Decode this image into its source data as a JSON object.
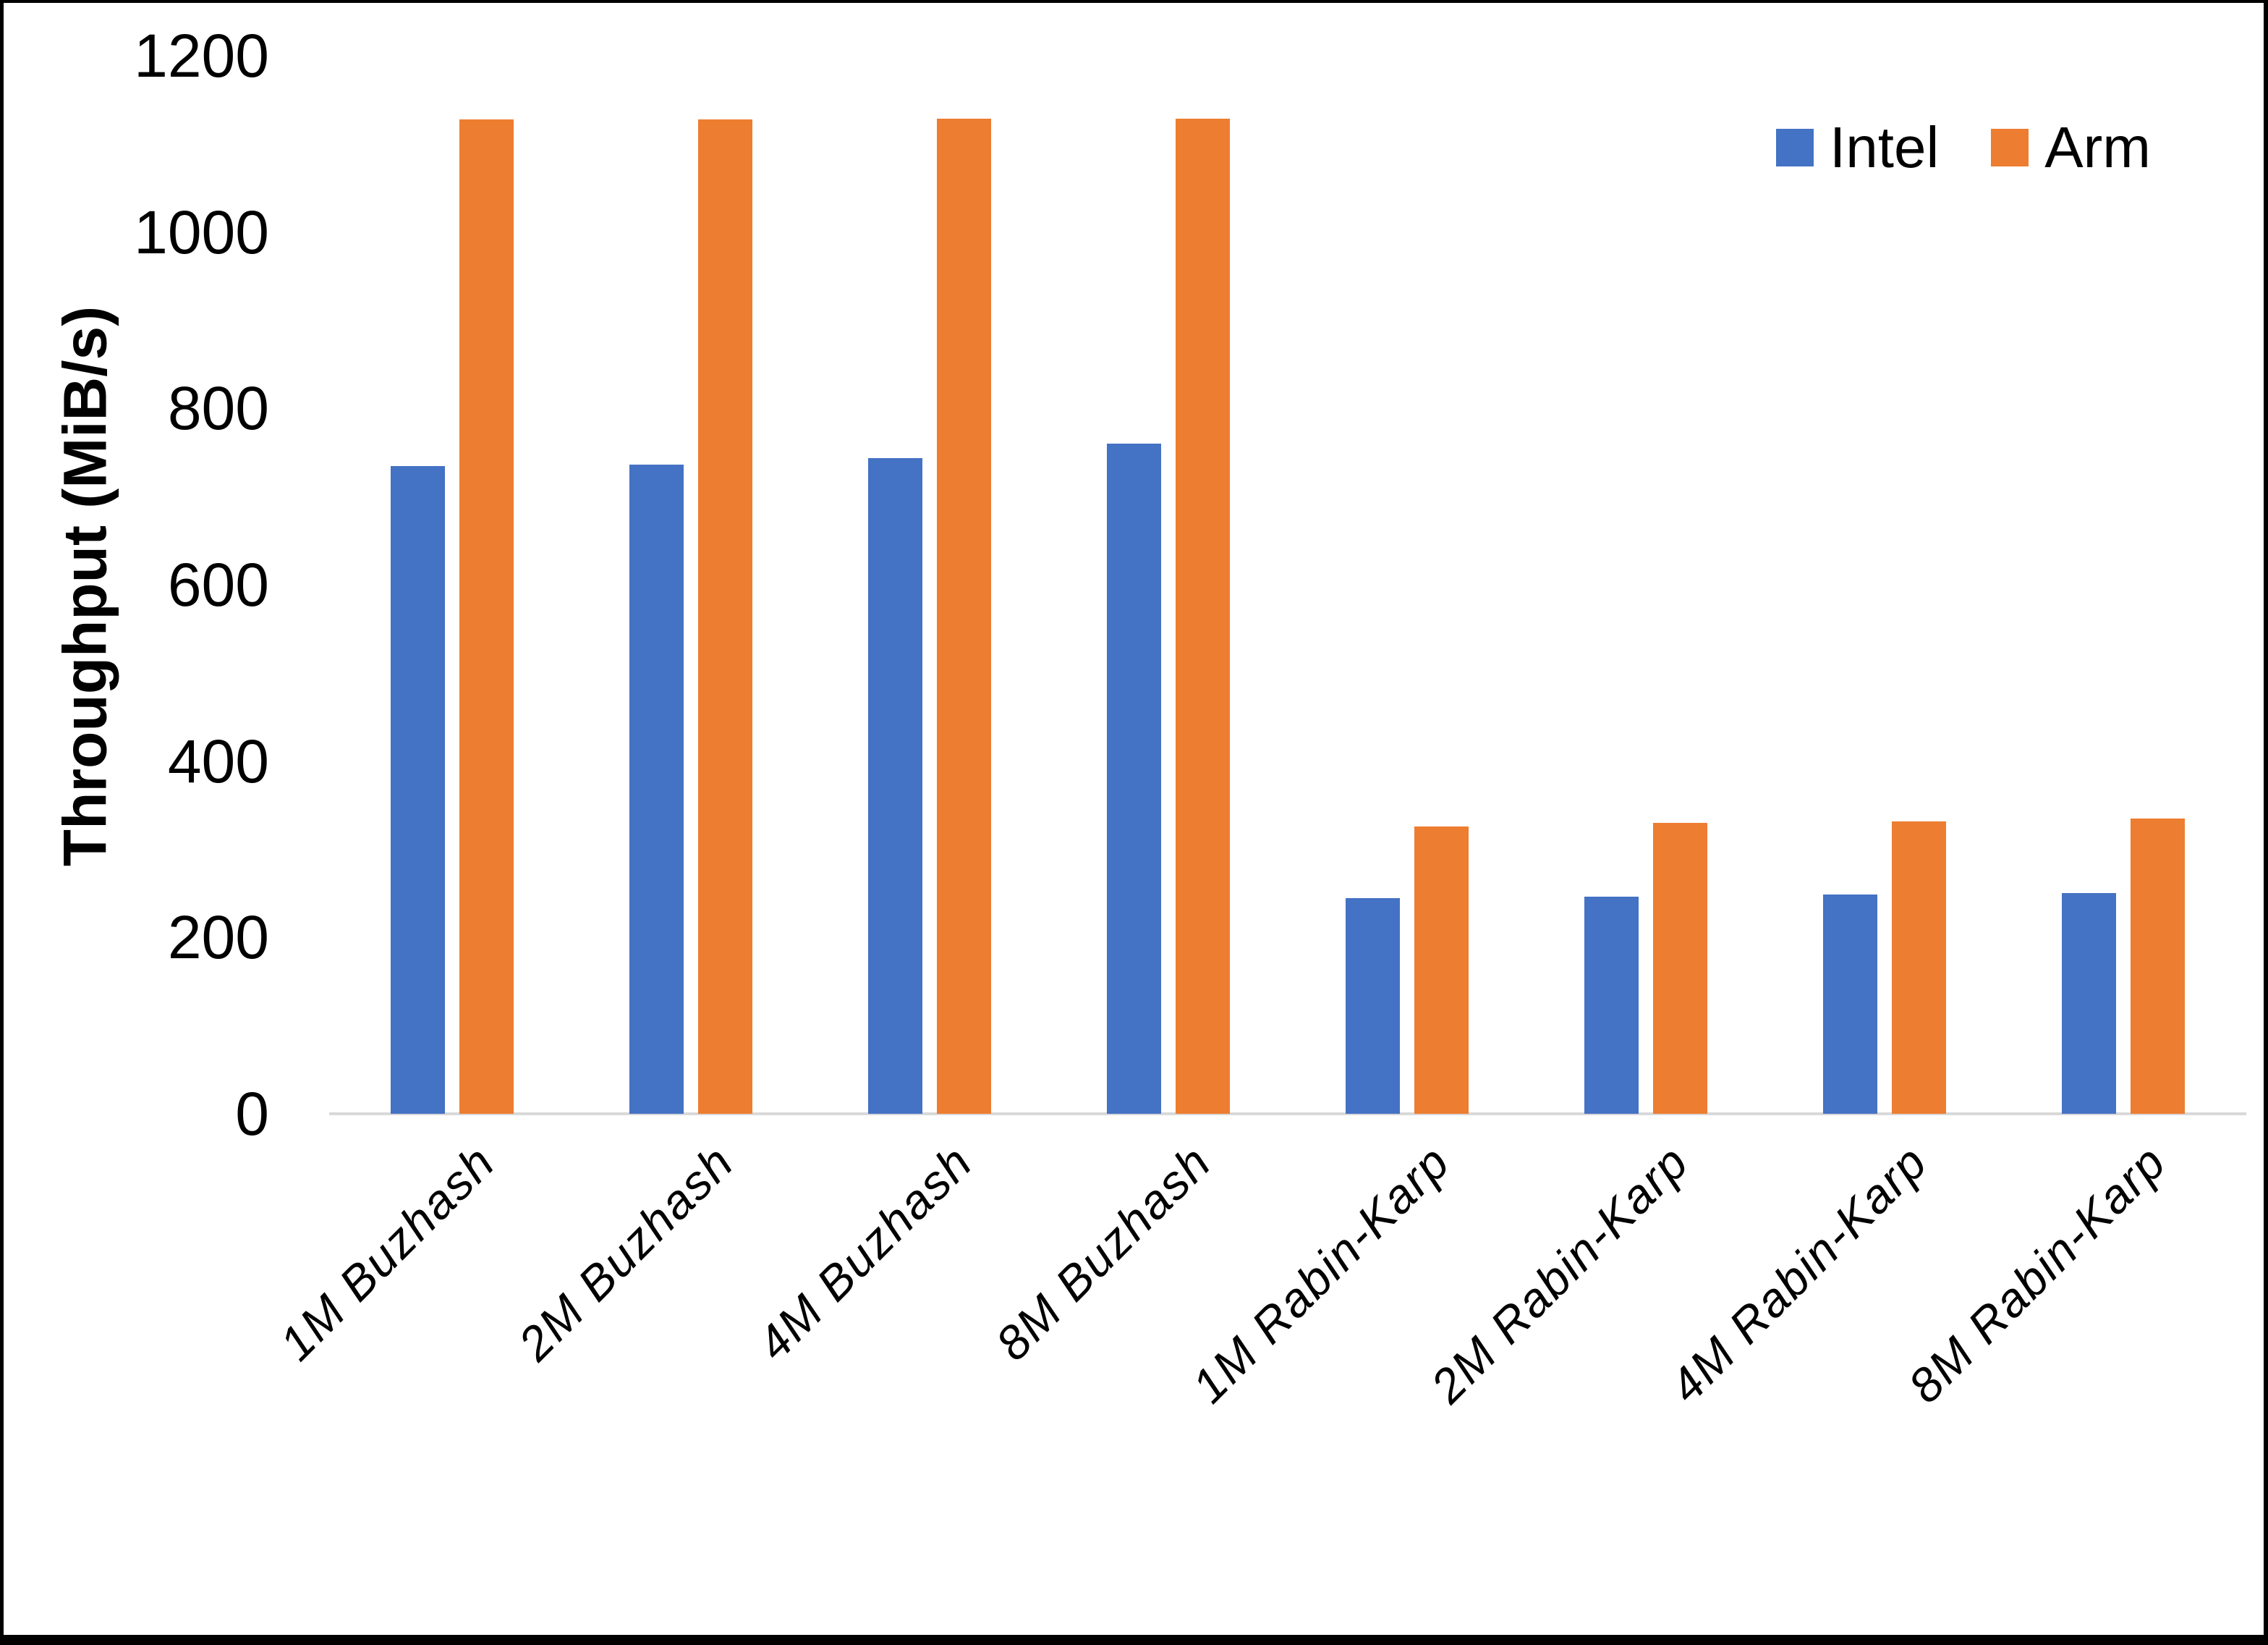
{
  "page": {
    "background": "#ffffff",
    "frame_color": "#000000",
    "axis_line_color": "#D9D9D9",
    "text_color": "#000000"
  },
  "chart_data": {
    "type": "bar",
    "title": "",
    "xlabel": "",
    "ylabel": "Throughput (MiB/s)",
    "ylim": [
      0,
      1200
    ],
    "ytick_interval": 200,
    "yticks": [
      "1200",
      "1000",
      "800",
      "600",
      "400",
      "200",
      "0"
    ],
    "grid": false,
    "legend_position": "top-right",
    "categories": [
      "1M Buzhash",
      "2M Buzhash",
      "4M Buzhash",
      "8M Buzhash",
      "1M Rabin-Karp",
      "2M Rabin-Karp",
      "4M Rabin-Karp",
      "8M Rabin-Karp"
    ],
    "series": [
      {
        "name": "Intel",
        "color": "#4472C4",
        "values": [
          735,
          736,
          744,
          760,
          245,
          246,
          249,
          250
        ]
      },
      {
        "name": "Arm",
        "color": "#ED7D31",
        "values": [
          1128,
          1128,
          1129,
          1129,
          326,
          330,
          332,
          335
        ]
      }
    ]
  }
}
